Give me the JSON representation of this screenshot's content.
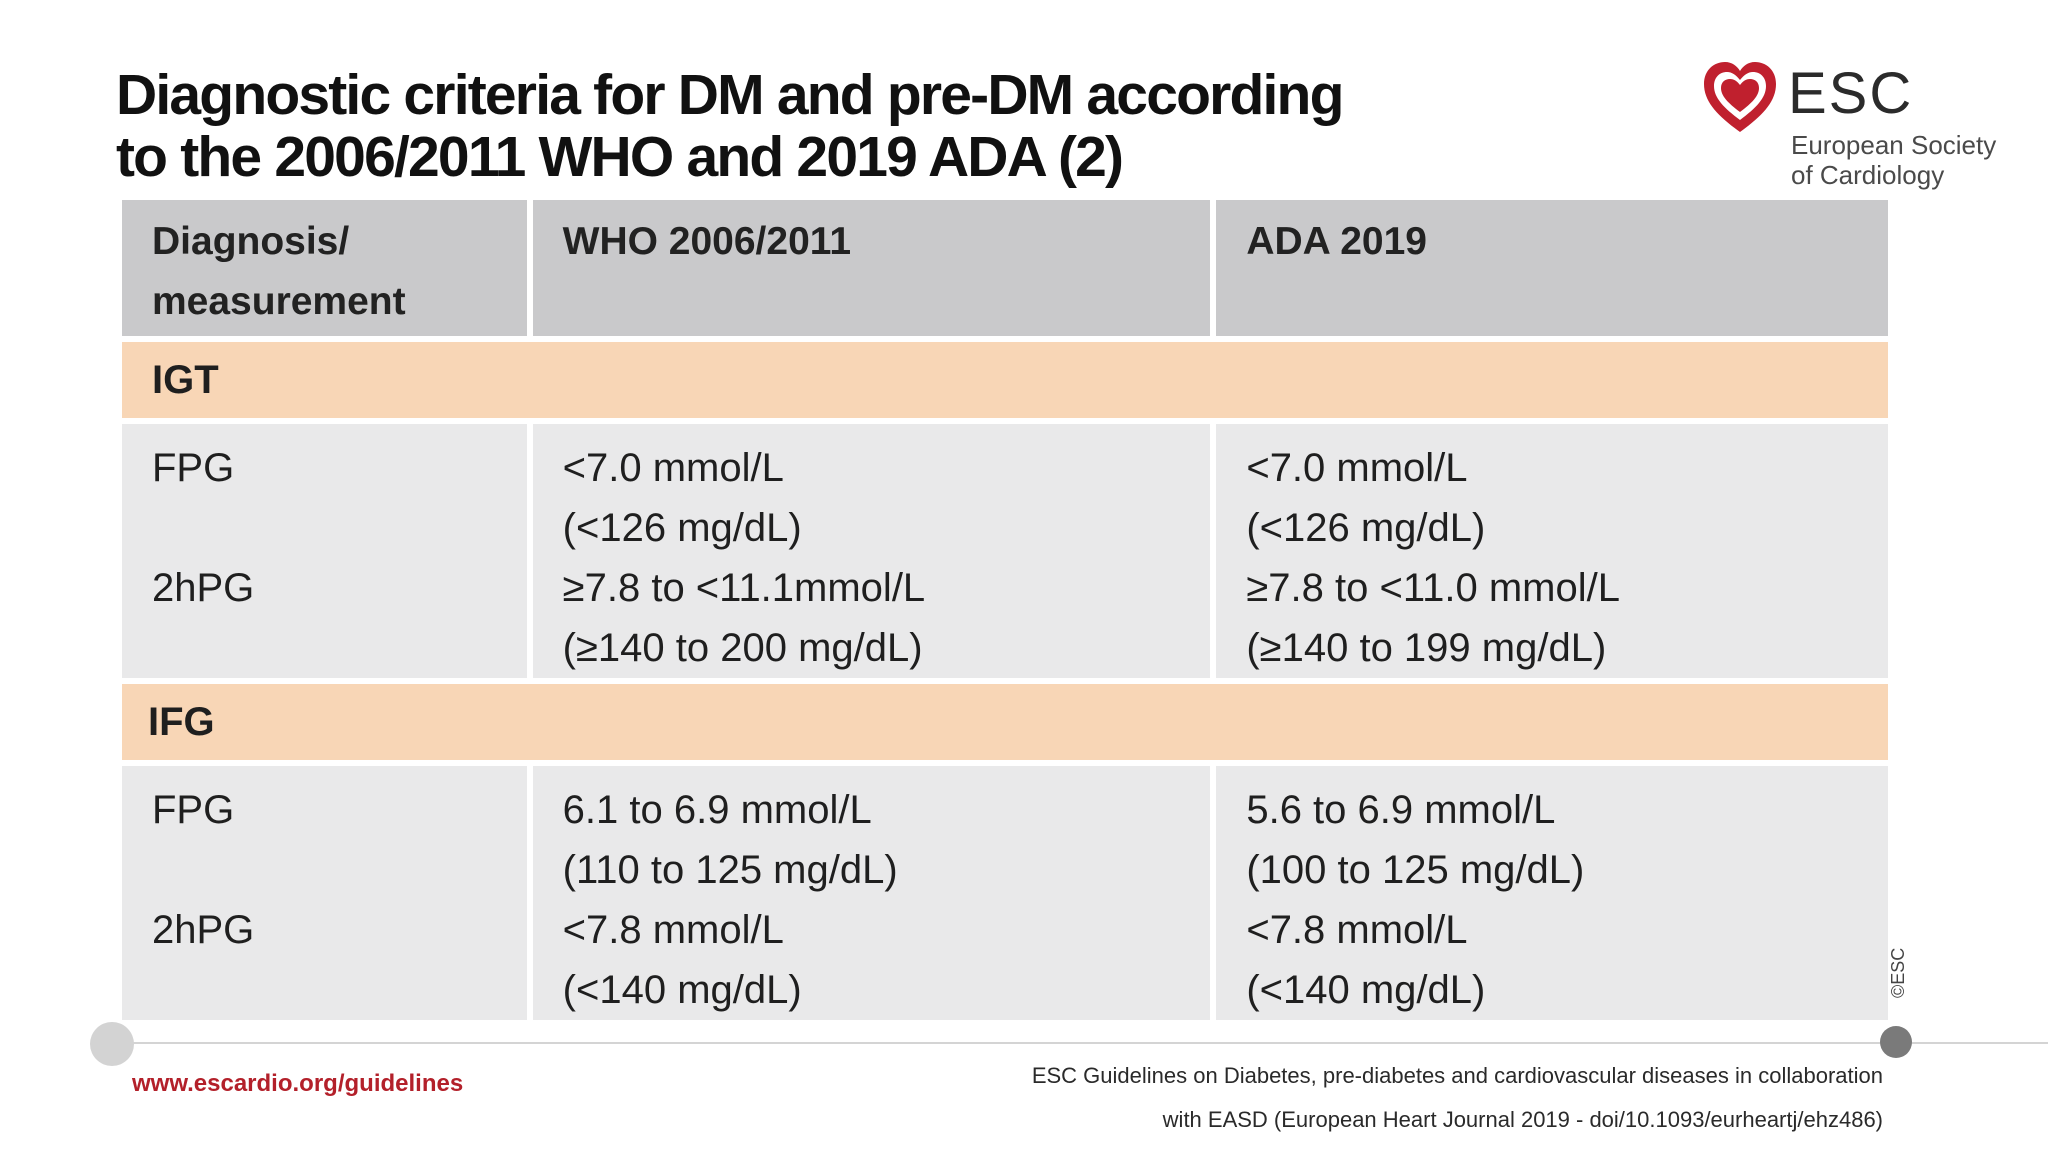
{
  "slide": {
    "title_line1": "Diagnostic criteria for DM and pre-DM according",
    "title_line2": "to the 2006/2011 WHO and 2019 ADA (2)"
  },
  "logo": {
    "name": "ESC",
    "subtitle_line1": "European Society",
    "subtitle_line2": "of Cardiology",
    "color": "#c0202e"
  },
  "table": {
    "headers": {
      "col1_line1": "Diagnosis/",
      "col1_line2": "measurement",
      "col2": "WHO 2006/2011",
      "col3": "ADA 2019"
    },
    "sections": [
      {
        "label": "IGT",
        "measure_fpg": "FPG",
        "measure_2hpg": "2hPG",
        "who": [
          "<7.0 mmol/L",
          "(<126 mg/dL)",
          "≥7.8 to <11.1mmol/L",
          "(≥140 to 200 mg/dL)"
        ],
        "ada": [
          "<7.0 mmol/L",
          "(<126 mg/dL)",
          "≥7.8 to <11.0 mmol/L",
          "(≥140 to 199 mg/dL)"
        ]
      },
      {
        "label": "IFG",
        "measure_fpg": "FPG",
        "measure_2hpg": "2hPG",
        "who": [
          "6.1 to 6.9 mmol/L",
          "(110 to 125 mg/dL)",
          "<7.8 mmol/L",
          "(<140 mg/dL)"
        ],
        "ada": [
          "5.6 to 6.9 mmol/L",
          "(100 to 125 mg/dL)",
          "<7.8 mmol/L",
          "(<140 mg/dL)"
        ]
      }
    ],
    "colors": {
      "header_bg": "#c9c9cb",
      "section_bg": "#f8d6b6",
      "data_bg": "#e9e9ea"
    }
  },
  "copyright": "©ESC",
  "footer": {
    "link": "www.escardio.org/guidelines",
    "citation_line1": "ESC Guidelines on Diabetes, pre-diabetes and cardiovascular diseases in collaboration",
    "citation_line2": "with EASD (European Heart Journal 2019 - doi/10.1093/eurheartj/ehz486)"
  }
}
